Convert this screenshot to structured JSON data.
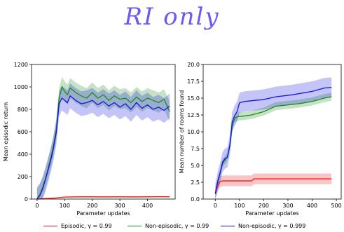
{
  "heading": "RI only",
  "legend": [
    {
      "label": "Episodic, γ = 0.99",
      "color": "#e8191b"
    },
    {
      "label": "Non-episodic, γ = 0.99",
      "color": "#1b8c1b"
    },
    {
      "label": "Non-episodic, γ = 0.999",
      "color": "#1515e0"
    }
  ],
  "chart_data": [
    {
      "type": "line",
      "xlabel": "Parameter updates",
      "ylabel": "Mean episodic return",
      "xlim": [
        -20,
        500
      ],
      "ylim": [
        0,
        1200
      ],
      "xticks": [
        0,
        100,
        200,
        300,
        400
      ],
      "yticks": [
        0,
        200,
        400,
        600,
        800,
        1000,
        1200
      ],
      "series": [
        {
          "name": "Episodic, γ = 0.99",
          "color": "#e8191b",
          "x": [
            0,
            20,
            40,
            60,
            80,
            100,
            150,
            200,
            250,
            300,
            350,
            400,
            450,
            480
          ],
          "y": [
            0,
            3,
            5,
            8,
            12,
            18,
            20,
            20,
            19,
            20,
            19,
            20,
            21,
            20
          ],
          "band": 5
        },
        {
          "name": "Non-episodic, γ = 0.99",
          "color": "#1b8c1b",
          "x": [
            0,
            10,
            20,
            30,
            40,
            50,
            60,
            70,
            80,
            90,
            100,
            110,
            120,
            140,
            160,
            180,
            200,
            220,
            240,
            260,
            280,
            300,
            320,
            340,
            360,
            380,
            400,
            420,
            440,
            460,
            480
          ],
          "y": [
            0,
            40,
            100,
            180,
            270,
            370,
            480,
            630,
            900,
            1000,
            960,
            930,
            990,
            950,
            920,
            900,
            950,
            900,
            930,
            880,
            920,
            890,
            900,
            860,
            910,
            870,
            900,
            880,
            860,
            890,
            780
          ],
          "band": 90
        },
        {
          "name": "Non-episodic, γ = 0.999",
          "color": "#1515e0",
          "x": [
            0,
            10,
            20,
            30,
            40,
            50,
            60,
            70,
            80,
            90,
            100,
            110,
            120,
            140,
            160,
            180,
            200,
            220,
            240,
            260,
            280,
            300,
            320,
            340,
            360,
            380,
            400,
            420,
            440,
            460,
            480
          ],
          "y": [
            0,
            30,
            90,
            170,
            260,
            350,
            460,
            600,
            850,
            900,
            880,
            860,
            920,
            880,
            850,
            860,
            880,
            840,
            870,
            830,
            860,
            820,
            850,
            800,
            860,
            810,
            840,
            800,
            820,
            790,
            830
          ],
          "band": 110
        }
      ]
    },
    {
      "type": "line",
      "xlabel": "Parameter updates",
      "ylabel": "Mean number of rooms found",
      "xlim": [
        -5,
        52
      ],
      "ylim": [
        0,
        20
      ],
      "xticks": [
        0,
        100,
        200,
        300,
        400,
        500
      ],
      "xtick_scale": 0.1,
      "yticks": [
        0.0,
        2.5,
        5.0,
        7.5,
        10.0,
        12.5,
        15.0,
        17.5,
        20.0
      ],
      "series": [
        {
          "name": "Episodic, γ = 0.99",
          "color": "#e8191b",
          "x": [
            0,
            1,
            2,
            3,
            15,
            16,
            48
          ],
          "y": [
            0.8,
            2.0,
            2.6,
            2.7,
            2.7,
            3.0,
            3.0
          ],
          "band": 0.8
        },
        {
          "name": "Non-episodic, γ = 0.99",
          "color": "#1b8c1b",
          "x": [
            0,
            1,
            2,
            3,
            4,
            5,
            6,
            7,
            8,
            9,
            10,
            11,
            15,
            20,
            25,
            30,
            35,
            40,
            45,
            48
          ],
          "y": [
            0.8,
            2.6,
            3.8,
            5.3,
            5.8,
            6.3,
            7.8,
            10.8,
            12.0,
            12.2,
            12.3,
            12.3,
            12.5,
            13.0,
            13.8,
            14.0,
            14.2,
            14.5,
            15.0,
            15.2
          ],
          "band": 0.6
        },
        {
          "name": "Non-episodic, γ = 0.999",
          "color": "#1515e0",
          "x": [
            0,
            1,
            2,
            3,
            4,
            5,
            6,
            7,
            8,
            9,
            10,
            12,
            20,
            25,
            32,
            40,
            45,
            48
          ],
          "y": [
            0.8,
            2.6,
            3.9,
            5.5,
            6.0,
            6.2,
            8.0,
            11.5,
            12.4,
            13.0,
            14.3,
            14.5,
            14.8,
            15.2,
            15.5,
            16.0,
            16.5,
            16.6
          ],
          "band": 1.5
        }
      ]
    }
  ]
}
